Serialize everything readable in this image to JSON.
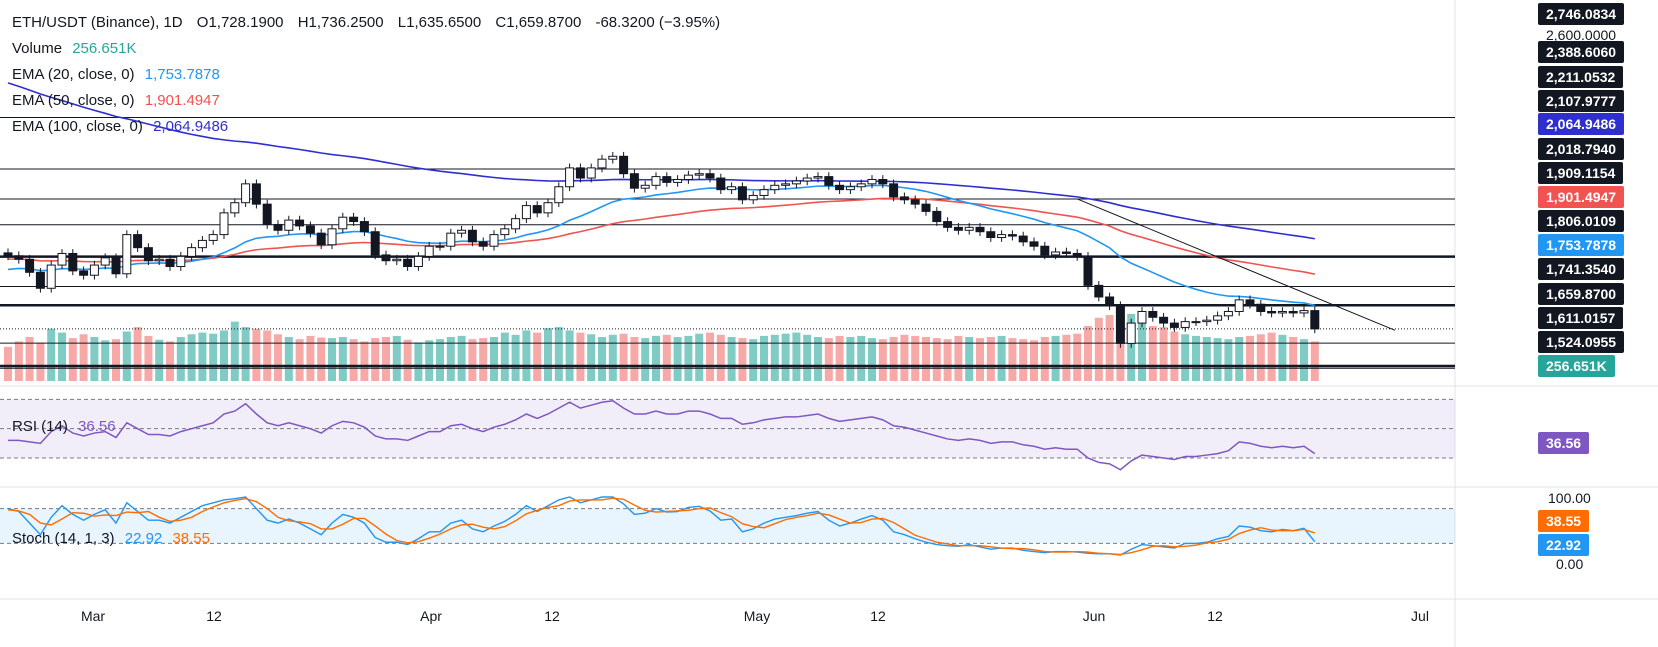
{
  "header": {
    "symbol": "ETH/USDT (Binance), 1D",
    "open": "O1,728.1900",
    "high": "H1,736.2500",
    "low": "L1,635.6500",
    "close": "C1,659.8700",
    "change": "-68.3200 (−3.95%)"
  },
  "legend": {
    "volume_label": "Volume",
    "volume_value": "256.651K",
    "ema20_label": "EMA (20, close, 0)",
    "ema20_value": "1,753.7878",
    "ema50_label": "EMA (50, close, 0)",
    "ema50_value": "1,901.4947",
    "ema100_label": "EMA (100, close, 0)",
    "ema100_value": "2,064.9486",
    "rsi_label": "RSI (14)",
    "rsi_value": "36.56",
    "stoch_label": "Stoch (14, 1, 3)",
    "stoch_k_value": "22.92",
    "stoch_d_value": "38.55"
  },
  "colors": {
    "up": "#26a69a",
    "down": "#ef5350",
    "ema20": "#2196f3",
    "ema50": "#f05350",
    "ema100": "#2f2fd0",
    "rsi": "#7e57c2",
    "stoch_k": "#2196f3",
    "stoch_d": "#ff6d00"
  },
  "price_axis": {
    "top_label": "2,746.0834",
    "plain_label": "2,600.0000",
    "levels": [
      "2,388.6060",
      "2,211.0532",
      "2,107.9777",
      "2,018.7940",
      "1,909.1154",
      "1,806.0109",
      "1,741.3540",
      "1,611.0157",
      "1,524.0955"
    ],
    "ema100_tag": "2,064.9486",
    "ema50_tag": "1,901.4947",
    "ema20_tag": "1,753.7878",
    "last_price_tag": "1,659.8700",
    "volume_tag": "256.651K"
  },
  "rsi_axis": {
    "tag": "36.56"
  },
  "stoch_axis": {
    "top": "100.00",
    "bottom": "0.00",
    "d_tag": "38.55",
    "k_tag": "22.92"
  },
  "time_axis": [
    "Mar",
    "12",
    "Apr",
    "12",
    "May",
    "12",
    "Jun",
    "12",
    "Jul"
  ],
  "chart_data": {
    "type": "candlestick",
    "symbol": "ETH/USDT",
    "interval": "1D",
    "x_labels": [
      "Mar",
      "12",
      "Apr",
      "12",
      "May",
      "12",
      "Jun",
      "12",
      "Jul"
    ],
    "ylim": [
      1470,
      2780
    ],
    "horizontal_levels": [
      2388.606,
      2211.0532,
      2107.9777,
      2018.794,
      1909.1154,
      1806.0109,
      1741.354,
      1611.0157,
      1524.0955
    ],
    "trendline": {
      "from_close_index": 99,
      "from_value": 2108,
      "to_value": 1655
    },
    "closes": [
      1912,
      1900,
      1855,
      1800,
      1880,
      1920,
      1860,
      1845,
      1880,
      1905,
      1850,
      1985,
      1940,
      1895,
      1900,
      1875,
      1910,
      1940,
      1965,
      1985,
      2060,
      2095,
      2160,
      2090,
      2020,
      2000,
      2035,
      2015,
      1990,
      1950,
      2005,
      2045,
      2030,
      1995,
      1915,
      1895,
      1900,
      1875,
      1910,
      1945,
      1945,
      1990,
      2000,
      1960,
      1945,
      1985,
      2005,
      2040,
      2085,
      2060,
      2095,
      2150,
      2215,
      2180,
      2215,
      2245,
      2255,
      2195,
      2145,
      2155,
      2185,
      2165,
      2175,
      2190,
      2195,
      2180,
      2140,
      2150,
      2105,
      2120,
      2140,
      2155,
      2160,
      2170,
      2180,
      2185,
      2155,
      2140,
      2150,
      2160,
      2175,
      2160,
      2115,
      2105,
      2090,
      2065,
      2030,
      2010,
      2000,
      2010,
      1995,
      1975,
      1985,
      1980,
      1960,
      1945,
      1915,
      1925,
      1920,
      1910,
      1810,
      1770,
      1740,
      1610,
      1680,
      1720,
      1700,
      1680,
      1665,
      1685,
      1685,
      1690,
      1705,
      1720,
      1760,
      1745,
      1720,
      1715,
      1720,
      1715,
      1723,
      1660
    ],
    "volume": [
      62,
      72,
      80,
      70,
      95,
      88,
      78,
      85,
      80,
      74,
      76,
      90,
      98,
      82,
      75,
      72,
      80,
      85,
      88,
      86,
      92,
      108,
      98,
      95,
      92,
      85,
      80,
      76,
      82,
      79,
      78,
      80,
      76,
      72,
      78,
      80,
      82,
      75,
      70,
      74,
      76,
      80,
      82,
      76,
      78,
      80,
      88,
      84,
      92,
      88,
      96,
      98,
      92,
      88,
      85,
      80,
      84,
      86,
      80,
      78,
      82,
      84,
      80,
      82,
      86,
      88,
      84,
      80,
      78,
      76,
      82,
      84,
      86,
      88,
      84,
      80,
      78,
      82,
      80,
      82,
      78,
      76,
      80,
      84,
      82,
      80,
      78,
      76,
      82,
      80,
      78,
      80,
      82,
      78,
      76,
      74,
      80,
      82,
      84,
      86,
      100,
      115,
      120,
      130,
      122,
      110,
      100,
      98,
      90,
      85,
      82,
      80,
      78,
      76,
      80,
      82,
      85,
      88,
      84,
      80,
      76,
      72
    ],
    "rsi": [
      42,
      42,
      41,
      40,
      48,
      52,
      47,
      45,
      47,
      48,
      44,
      54,
      50,
      46,
      46,
      45,
      48,
      50,
      52,
      54,
      60,
      62,
      67,
      60,
      54,
      52,
      54,
      52,
      50,
      47,
      52,
      55,
      54,
      51,
      45,
      43,
      43,
      42,
      45,
      48,
      48,
      52,
      53,
      50,
      48,
      51,
      53,
      56,
      60,
      57,
      60,
      64,
      68,
      64,
      66,
      68,
      69,
      64,
      60,
      60,
      62,
      60,
      60,
      62,
      62,
      60,
      57,
      57,
      53,
      54,
      56,
      57,
      58,
      58,
      59,
      60,
      57,
      55,
      56,
      57,
      58,
      56,
      52,
      51,
      49,
      47,
      45,
      43,
      42,
      43,
      42,
      40,
      41,
      41,
      39,
      38,
      36,
      37,
      36,
      36,
      30,
      27,
      26,
      22,
      28,
      32,
      31,
      30,
      29,
      31,
      31,
      32,
      33,
      35,
      41,
      40,
      38,
      37,
      38,
      37,
      38,
      33
    ],
    "stoch_k": [
      80,
      75,
      55,
      35,
      65,
      85,
      70,
      60,
      70,
      78,
      55,
      90,
      75,
      60,
      60,
      55,
      65,
      75,
      85,
      90,
      95,
      97,
      100,
      80,
      60,
      55,
      62,
      55,
      45,
      35,
      55,
      70,
      65,
      55,
      30,
      22,
      22,
      18,
      28,
      40,
      40,
      55,
      60,
      45,
      40,
      50,
      58,
      70,
      85,
      75,
      85,
      95,
      100,
      90,
      95,
      100,
      100,
      88,
      70,
      72,
      80,
      74,
      75,
      82,
      84,
      76,
      60,
      62,
      40,
      45,
      55,
      62,
      65,
      68,
      72,
      75,
      60,
      50,
      55,
      62,
      68,
      60,
      40,
      35,
      28,
      22,
      18,
      16,
      15,
      18,
      14,
      10,
      12,
      12,
      8,
      6,
      4,
      6,
      6,
      5,
      3,
      2,
      2,
      0,
      10,
      18,
      16,
      14,
      12,
      20,
      20,
      22,
      28,
      32,
      50,
      48,
      42,
      40,
      44,
      42,
      46,
      23
    ],
    "stoch_d": [
      78,
      76,
      70,
      55,
      52,
      62,
      73,
      72,
      67,
      69,
      68,
      74,
      73,
      75,
      65,
      58,
      60,
      65,
      75,
      83,
      90,
      94,
      97,
      92,
      80,
      65,
      59,
      57,
      54,
      45,
      45,
      53,
      63,
      63,
      50,
      36,
      25,
      21,
      23,
      29,
      36,
      45,
      52,
      53,
      48,
      45,
      49,
      59,
      71,
      77,
      82,
      85,
      93,
      95,
      95,
      95,
      98,
      96,
      86,
      77,
      74,
      75,
      76,
      77,
      80,
      81,
      73,
      66,
      54,
      49,
      47,
      54,
      61,
      65,
      68,
      72,
      69,
      62,
      55,
      56,
      62,
      63,
      56,
      45,
      34,
      28,
      22,
      19,
      16,
      16,
      16,
      14,
      12,
      11,
      11,
      9,
      6,
      5,
      5,
      6,
      5,
      3,
      2,
      1,
      4,
      9,
      15,
      16,
      14,
      15,
      17,
      21,
      23,
      27,
      37,
      43,
      47,
      43,
      42,
      42,
      44,
      38
    ]
  }
}
